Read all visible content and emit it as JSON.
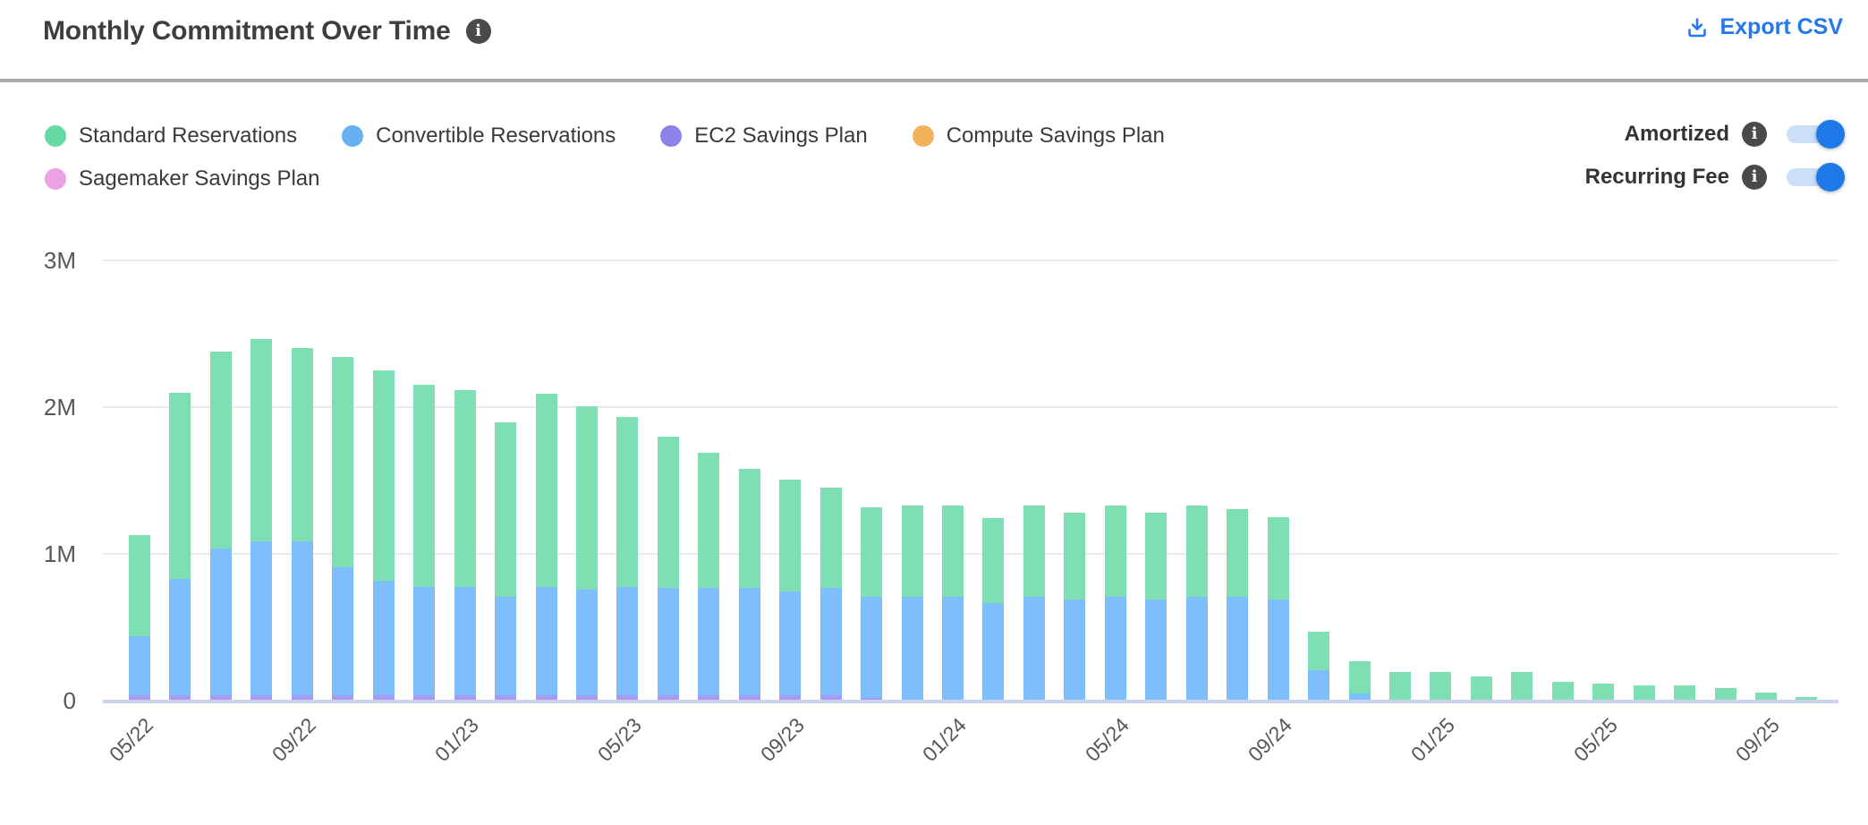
{
  "header": {
    "title": "Monthly Commitment Over Time",
    "export_label": "Export CSV"
  },
  "icons": {
    "info_glyph": "i"
  },
  "legend": {
    "rows": [
      [
        {
          "label": "Standard Reservations",
          "color": "#67D7A3"
        },
        {
          "label": "Convertible Reservations",
          "color": "#67B1F2"
        },
        {
          "label": "EC2 Savings Plan",
          "color": "#8C82E8"
        },
        {
          "label": "Compute Savings Plan",
          "color": "#F2B35C"
        }
      ],
      [
        {
          "label": "Sagemaker Savings Plan",
          "color": "#E9A2E4"
        }
      ]
    ]
  },
  "toggles": [
    {
      "label": "Amortized",
      "state": "on"
    },
    {
      "label": "Recurring Fee",
      "state": "on"
    }
  ],
  "colors": {
    "accent_blue": "#2577F0",
    "toggle_track": "#CBDFF8",
    "toggle_knob": "#1E78E8",
    "info_icon_bg": "#4A4A4A",
    "gridline": "#EAEAEE",
    "axis_line": "#CBD3EA",
    "divider": "#AAAAAA",
    "title_text": "#3E3E3E",
    "axis_text": "#57575B",
    "legend_text": "#3A3A3A"
  },
  "chart_data": {
    "type": "bar",
    "stacked": true,
    "unit": "millions",
    "title": "Monthly Commitment Over Time",
    "ylim": [
      0,
      3
    ],
    "y_ticks": [
      "3M",
      "2M",
      "1M",
      "0"
    ],
    "grid": "horizontal",
    "legend_position": "top-left",
    "x_tick_labels": [
      "05/22",
      "09/22",
      "01/23",
      "05/23",
      "09/23",
      "01/24",
      "05/24",
      "09/24",
      "01/25",
      "05/25",
      "09/25"
    ],
    "tick_every": 4,
    "categories": [
      "05/22",
      "06/22",
      "07/22",
      "08/22",
      "09/22",
      "10/22",
      "11/22",
      "12/22",
      "01/23",
      "02/23",
      "03/23",
      "04/23",
      "05/23",
      "06/23",
      "07/23",
      "08/23",
      "09/23",
      "10/23",
      "11/23",
      "12/23",
      "01/24",
      "02/24",
      "03/24",
      "04/24",
      "05/24",
      "06/24",
      "07/24",
      "08/24",
      "09/24",
      "10/24",
      "11/24",
      "12/24",
      "01/25",
      "02/25",
      "03/25",
      "04/25",
      "05/25",
      "06/25",
      "07/25",
      "08/25",
      "09/25",
      "10/25"
    ],
    "stack_bottom_to_top": [
      "Sagemaker Savings Plan",
      "Compute Savings Plan",
      "EC2 Savings Plan",
      "Convertible Reservations",
      "Standard Reservations"
    ],
    "series": [
      {
        "name": "Standard Reservations",
        "color": "#7EDFB3",
        "values": [
          0.69,
          1.27,
          1.34,
          1.38,
          1.32,
          1.43,
          1.43,
          1.38,
          1.34,
          1.19,
          1.32,
          1.25,
          1.16,
          1.03,
          0.92,
          0.81,
          0.76,
          0.68,
          0.61,
          0.62,
          0.62,
          0.58,
          0.62,
          0.59,
          0.62,
          0.59,
          0.62,
          0.6,
          0.56,
          0.26,
          0.22,
          0.19,
          0.19,
          0.16,
          0.19,
          0.12,
          0.11,
          0.1,
          0.1,
          0.08,
          0.05,
          0.02
        ]
      },
      {
        "name": "Convertible Reservations",
        "color": "#7FBEFC",
        "values": [
          0.4,
          0.79,
          1.0,
          1.05,
          1.05,
          0.87,
          0.78,
          0.74,
          0.74,
          0.67,
          0.74,
          0.72,
          0.74,
          0.73,
          0.73,
          0.73,
          0.71,
          0.73,
          0.69,
          0.7,
          0.7,
          0.66,
          0.7,
          0.68,
          0.7,
          0.68,
          0.7,
          0.7,
          0.68,
          0.2,
          0.04,
          0,
          0,
          0,
          0,
          0,
          0,
          0,
          0,
          0,
          0,
          0
        ]
      },
      {
        "name": "EC2 Savings Plan",
        "color": "#A89AF3",
        "values": [
          0.03,
          0.03,
          0.03,
          0.03,
          0.03,
          0.03,
          0.03,
          0.03,
          0.03,
          0.03,
          0.03,
          0.03,
          0.03,
          0.03,
          0.03,
          0.03,
          0.03,
          0.03,
          0.015,
          0,
          0,
          0,
          0,
          0,
          0,
          0,
          0,
          0,
          0,
          0,
          0,
          0,
          0,
          0,
          0,
          0,
          0,
          0,
          0,
          0,
          0,
          0
        ]
      },
      {
        "name": "Compute Savings Plan",
        "color": "#F2B35C",
        "values": [
          0,
          0,
          0,
          0,
          0,
          0,
          0,
          0,
          0,
          0,
          0,
          0,
          0,
          0,
          0,
          0,
          0,
          0,
          0,
          0,
          0,
          0,
          0,
          0,
          0,
          0,
          0,
          0,
          0,
          0,
          0,
          0,
          0,
          0,
          0,
          0,
          0,
          0,
          0,
          0,
          0,
          0
        ]
      },
      {
        "name": "Sagemaker Savings Plan",
        "color": "#E9A2E4",
        "values": [
          0,
          0,
          0,
          0,
          0,
          0,
          0,
          0,
          0,
          0,
          0,
          0,
          0,
          0,
          0,
          0,
          0,
          0,
          0,
          0,
          0,
          0,
          0,
          0,
          0,
          0,
          0,
          0,
          0,
          0,
          0,
          0,
          0,
          0,
          0,
          0,
          0,
          0,
          0,
          0,
          0,
          0
        ]
      }
    ]
  }
}
